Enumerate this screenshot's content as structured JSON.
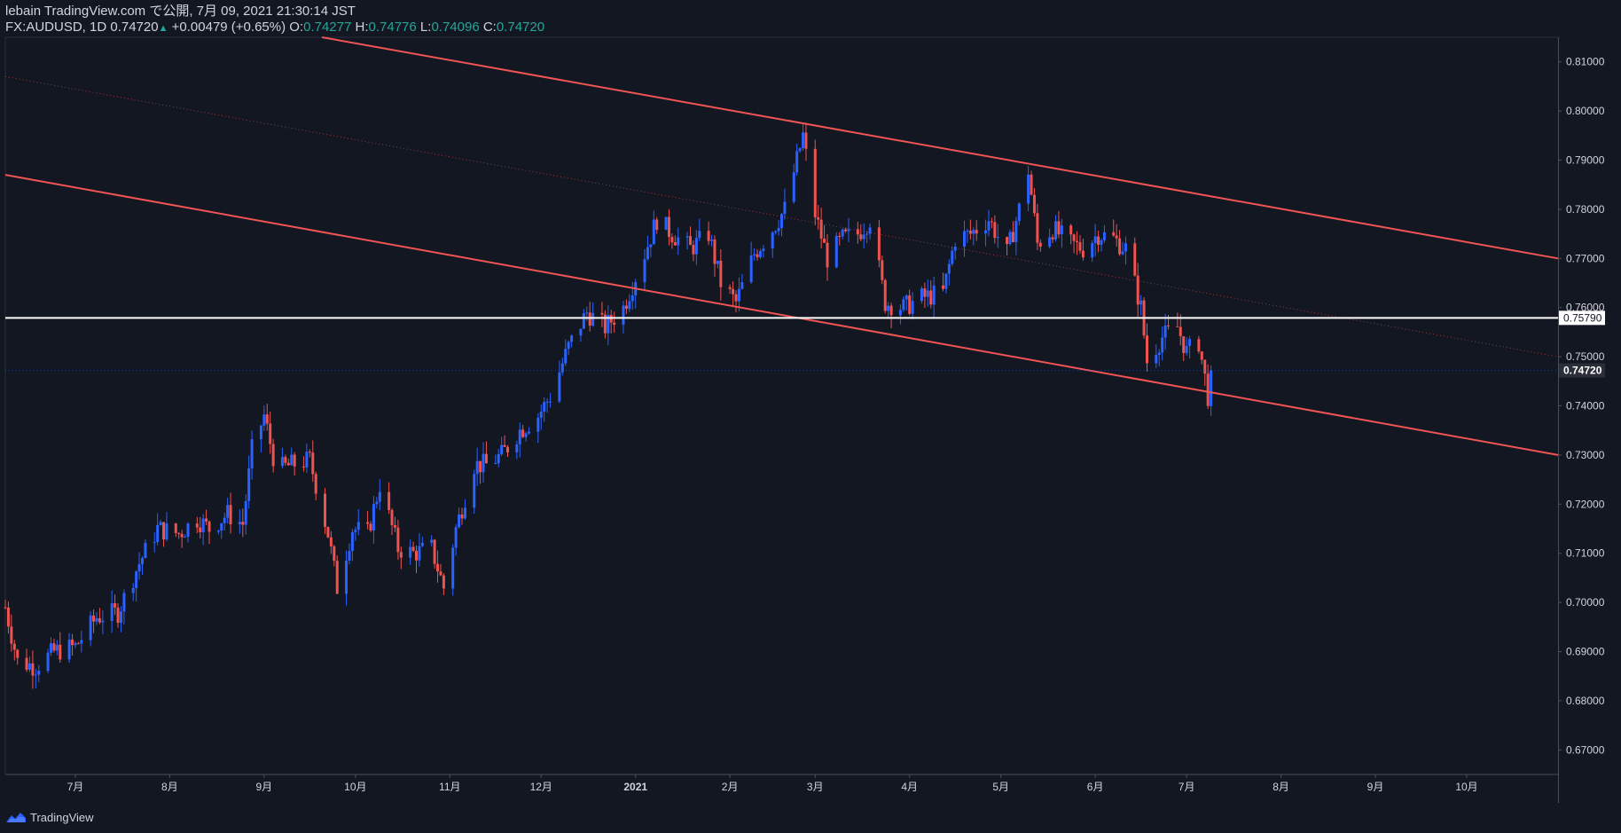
{
  "header": {
    "publish_line": "lebain TradingView.com で公開, 7月 09, 2021 21:30:14 JST",
    "symbol": "FX:AUDUSD, 1D",
    "last": "0.74720",
    "change": "+0.00479 (+0.65%)",
    "o_label": "O:",
    "o_value": "0.74277",
    "h_label": "H:",
    "h_value": "0.74776",
    "l_label": "L:",
    "l_value": "0.74096",
    "c_label": "C:",
    "c_value": "0.74720",
    "up_arrow": "▲"
  },
  "footer": {
    "brand": "TradingView",
    "logo_icon": "tradingview-logo-icon"
  },
  "colors": {
    "background": "#131722",
    "up": "#2962ff",
    "down": "#ef5350",
    "channel": "#f05454",
    "horizontal": "#ffffff",
    "grid_text": "#d1d4dc",
    "accent_text": "#26a69a"
  },
  "chart_data": {
    "type": "candlestick",
    "title": "FX:AUDUSD, 1D",
    "ylim": [
      0.665,
      0.815
    ],
    "y_ticks": [
      "0.81000",
      "0.80000",
      "0.79000",
      "0.78000",
      "0.77000",
      "0.76000",
      "0.75000",
      "0.74000",
      "0.73000",
      "0.72000",
      "0.71000",
      "0.70000",
      "0.69000",
      "0.68000",
      "0.67000"
    ],
    "x_start": "2020-06-08",
    "x_end": "2021-10-31",
    "x_ticks": [
      {
        "label": "7月",
        "date": "2020-07-01"
      },
      {
        "label": "8月",
        "date": "2020-08-01"
      },
      {
        "label": "9月",
        "date": "2020-09-01"
      },
      {
        "label": "10月",
        "date": "2020-10-01"
      },
      {
        "label": "11月",
        "date": "2020-11-01"
      },
      {
        "label": "12月",
        "date": "2020-12-01"
      },
      {
        "label": "2021",
        "date": "2021-01-01"
      },
      {
        "label": "2月",
        "date": "2021-02-01"
      },
      {
        "label": "3月",
        "date": "2021-03-01"
      },
      {
        "label": "4月",
        "date": "2021-04-01"
      },
      {
        "label": "5月",
        "date": "2021-05-01"
      },
      {
        "label": "6月",
        "date": "2021-06-01"
      },
      {
        "label": "7月",
        "date": "2021-07-01"
      },
      {
        "label": "8月",
        "date": "2021-08-01"
      },
      {
        "label": "9月",
        "date": "2021-09-01"
      },
      {
        "label": "10月",
        "date": "2021-10-01"
      }
    ],
    "horizontal_line": {
      "value": 0.7579,
      "label": "0.75790"
    },
    "last_price": {
      "value": 0.7472,
      "label": "0.74720"
    },
    "channel_lines": [
      {
        "name": "upper",
        "from": {
          "date": "2020-09-20",
          "value": 0.815
        },
        "to": {
          "date": "2021-10-31",
          "value": 0.77
        }
      },
      {
        "name": "lower",
        "from": {
          "date": "2020-06-08",
          "value": 0.787
        },
        "to": {
          "date": "2021-10-31",
          "value": 0.73
        }
      },
      {
        "name": "median",
        "from": {
          "date": "2020-06-08",
          "value": 0.807
        },
        "to": {
          "date": "2021-10-31",
          "value": 0.75
        },
        "dotted": true
      }
    ],
    "price_path": [
      [
        "2020-06-08",
        0.699
      ],
      [
        "2020-06-12",
        0.688
      ],
      [
        "2020-06-18",
        0.687
      ],
      [
        "2020-06-24",
        0.69
      ],
      [
        "2020-07-01",
        0.691
      ],
      [
        "2020-07-08",
        0.697
      ],
      [
        "2020-07-15",
        0.698
      ],
      [
        "2020-07-22",
        0.708
      ],
      [
        "2020-07-28",
        0.715
      ],
      [
        "2020-08-04",
        0.714
      ],
      [
        "2020-08-10",
        0.717
      ],
      [
        "2020-08-14",
        0.715
      ],
      [
        "2020-08-20",
        0.718
      ],
      [
        "2020-08-25",
        0.716
      ],
      [
        "2020-08-28",
        0.731
      ],
      [
        "2020-09-01",
        0.738
      ],
      [
        "2020-09-05",
        0.727
      ],
      [
        "2020-09-10",
        0.728
      ],
      [
        "2020-09-16",
        0.729
      ],
      [
        "2020-09-22",
        0.714
      ],
      [
        "2020-09-25",
        0.703
      ],
      [
        "2020-09-30",
        0.715
      ],
      [
        "2020-10-05",
        0.714
      ],
      [
        "2020-10-09",
        0.724
      ],
      [
        "2020-10-15",
        0.711
      ],
      [
        "2020-10-20",
        0.71
      ],
      [
        "2020-10-26",
        0.711
      ],
      [
        "2020-10-30",
        0.703
      ],
      [
        "2020-11-03",
        0.715
      ],
      [
        "2020-11-09",
        0.728
      ],
      [
        "2020-11-13",
        0.728
      ],
      [
        "2020-11-18",
        0.73
      ],
      [
        "2020-11-24",
        0.735
      ],
      [
        "2020-11-30",
        0.738
      ],
      [
        "2020-12-04",
        0.742
      ],
      [
        "2020-12-10",
        0.752
      ],
      [
        "2020-12-16",
        0.759
      ],
      [
        "2020-12-22",
        0.756
      ],
      [
        "2020-12-28",
        0.76
      ],
      [
        "2021-01-04",
        0.771
      ],
      [
        "2021-01-08",
        0.778
      ],
      [
        "2021-01-13",
        0.775
      ],
      [
        "2021-01-19",
        0.772
      ],
      [
        "2021-01-25",
        0.775
      ],
      [
        "2021-01-29",
        0.765
      ],
      [
        "2021-02-03",
        0.761
      ],
      [
        "2021-02-09",
        0.771
      ],
      [
        "2021-02-15",
        0.776
      ],
      [
        "2021-02-19",
        0.78
      ],
      [
        "2021-02-23",
        0.79
      ],
      [
        "2021-02-25",
        0.795
      ],
      [
        "2021-03-01",
        0.779
      ],
      [
        "2021-03-05",
        0.77
      ],
      [
        "2021-03-10",
        0.774
      ],
      [
        "2021-03-15",
        0.775
      ],
      [
        "2021-03-19",
        0.778
      ],
      [
        "2021-03-24",
        0.761
      ],
      [
        "2021-03-30",
        0.76
      ],
      [
        "2021-04-05",
        0.762
      ],
      [
        "2021-04-12",
        0.763
      ],
      [
        "2021-04-16",
        0.774
      ],
      [
        "2021-04-21",
        0.775
      ],
      [
        "2021-04-27",
        0.778
      ],
      [
        "2021-05-03",
        0.771
      ],
      [
        "2021-05-07",
        0.78
      ],
      [
        "2021-05-10",
        0.788
      ],
      [
        "2021-05-13",
        0.773
      ],
      [
        "2021-05-18",
        0.776
      ],
      [
        "2021-05-24",
        0.773
      ],
      [
        "2021-05-28",
        0.772
      ],
      [
        "2021-06-02",
        0.775
      ],
      [
        "2021-06-07",
        0.774
      ],
      [
        "2021-06-11",
        0.772
      ],
      [
        "2021-06-16",
        0.76
      ],
      [
        "2021-06-18",
        0.749
      ],
      [
        "2021-06-23",
        0.754
      ],
      [
        "2021-06-28",
        0.756
      ],
      [
        "2021-07-01",
        0.751
      ],
      [
        "2021-07-05",
        0.753
      ],
      [
        "2021-07-08",
        0.742
      ],
      [
        "2021-07-09",
        0.7472
      ]
    ]
  }
}
